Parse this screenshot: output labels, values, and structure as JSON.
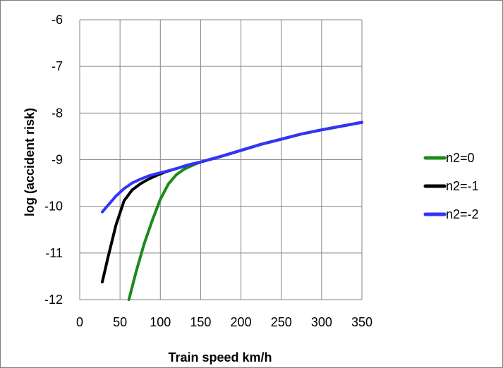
{
  "chart_data": {
    "type": "line",
    "title": "",
    "xlabel": "Train speed km/h",
    "ylabel": "log (accident risk)",
    "xlim": [
      0,
      350
    ],
    "ylim": [
      -12,
      -6
    ],
    "x_ticks": [
      0,
      50,
      100,
      150,
      200,
      250,
      300,
      350
    ],
    "y_ticks": [
      -6,
      -7,
      -8,
      -9,
      -10,
      -11,
      -12
    ],
    "grid": "both",
    "legend_position": "right",
    "series": [
      {
        "name": "n2=0",
        "color": "#1a8a1a",
        "points": [
          [
            61,
            -12.0
          ],
          [
            70,
            -11.4
          ],
          [
            80,
            -10.8
          ],
          [
            90,
            -10.3
          ],
          [
            100,
            -9.85
          ],
          [
            110,
            -9.52
          ],
          [
            120,
            -9.32
          ],
          [
            130,
            -9.2
          ],
          [
            140,
            -9.12
          ],
          [
            150,
            -9.05
          ],
          [
            175,
            -8.93
          ],
          [
            200,
            -8.8
          ],
          [
            225,
            -8.67
          ],
          [
            250,
            -8.56
          ],
          [
            275,
            -8.45
          ],
          [
            300,
            -8.36
          ],
          [
            325,
            -8.28
          ],
          [
            350,
            -8.2
          ]
        ]
      },
      {
        "name": "n2=-1",
        "color": "#000000",
        "points": [
          [
            28,
            -11.62
          ],
          [
            35,
            -11.1
          ],
          [
            45,
            -10.4
          ],
          [
            55,
            -9.88
          ],
          [
            65,
            -9.65
          ],
          [
            75,
            -9.52
          ],
          [
            85,
            -9.42
          ],
          [
            95,
            -9.34
          ],
          [
            105,
            -9.27
          ],
          [
            120,
            -9.19
          ],
          [
            135,
            -9.11
          ],
          [
            150,
            -9.05
          ],
          [
            175,
            -8.93
          ],
          [
            200,
            -8.8
          ],
          [
            225,
            -8.67
          ],
          [
            250,
            -8.56
          ],
          [
            275,
            -8.45
          ],
          [
            300,
            -8.36
          ],
          [
            325,
            -8.28
          ],
          [
            350,
            -8.2
          ]
        ]
      },
      {
        "name": "n2=-2",
        "color": "#3333ff",
        "points": [
          [
            28,
            -10.12
          ],
          [
            35,
            -9.98
          ],
          [
            45,
            -9.78
          ],
          [
            55,
            -9.62
          ],
          [
            65,
            -9.5
          ],
          [
            75,
            -9.42
          ],
          [
            85,
            -9.35
          ],
          [
            95,
            -9.3
          ],
          [
            105,
            -9.26
          ],
          [
            120,
            -9.19
          ],
          [
            135,
            -9.11
          ],
          [
            150,
            -9.05
          ],
          [
            175,
            -8.93
          ],
          [
            200,
            -8.8
          ],
          [
            225,
            -8.67
          ],
          [
            250,
            -8.56
          ],
          [
            275,
            -8.45
          ],
          [
            300,
            -8.36
          ],
          [
            325,
            -8.28
          ],
          [
            350,
            -8.2
          ]
        ]
      }
    ]
  }
}
